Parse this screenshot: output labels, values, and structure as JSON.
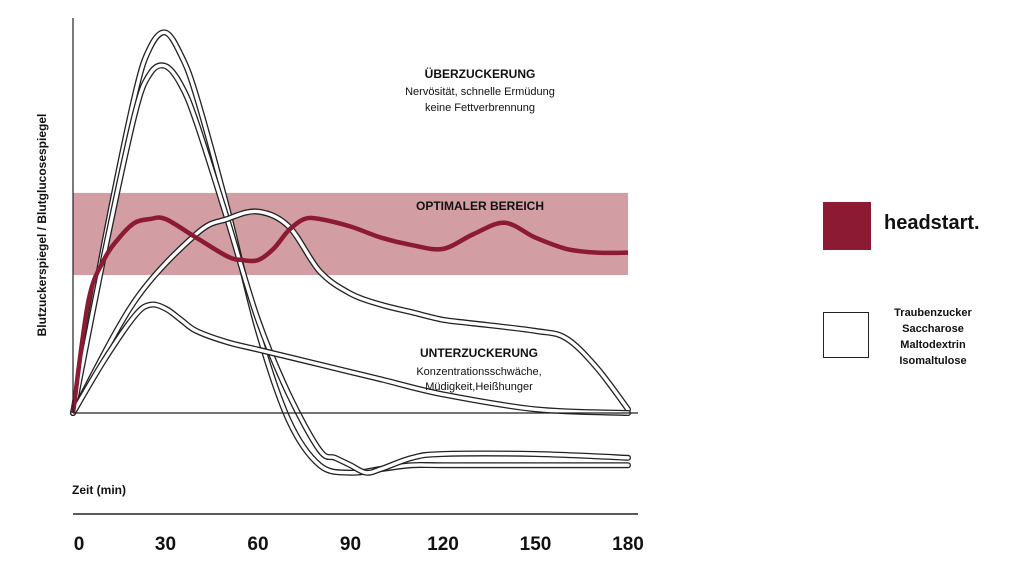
{
  "chart_data": {
    "type": "line",
    "ylabel": "Blutzuckerspiegel / Blutglucosespiegel",
    "xlabel": "Zeit (min)",
    "xticks": [
      0,
      30,
      60,
      90,
      120,
      150,
      180
    ],
    "xlim": [
      0,
      180
    ],
    "ylim": [
      -20,
      100
    ],
    "band": {
      "label": "OPTIMALER BEREICH",
      "from": 37,
      "to": 59,
      "color": "#d29ea4"
    },
    "annotations": {
      "high": {
        "title": "ÜBERZUCKERUNG",
        "lines": [
          "Nervösität, schnelle Ermüdung",
          "keine Fettverbrennung"
        ]
      },
      "low": {
        "title": "UNTERZUCKERUNG",
        "lines": [
          "Konzentrationsschwäche,",
          "Müdigkeit,Heißhunger"
        ]
      }
    },
    "series": [
      {
        "name": "headstart.",
        "color": "#8b1a32",
        "x": [
          0,
          5,
          10,
          15,
          20,
          25,
          30,
          40,
          50,
          55,
          60,
          65,
          70,
          75,
          80,
          90,
          100,
          110,
          120,
          130,
          140,
          150,
          160,
          170,
          180
        ],
        "y": [
          0,
          30,
          41,
          47,
          51,
          52,
          52,
          47,
          42,
          41,
          41,
          44,
          49,
          52,
          52,
          50,
          47,
          45,
          44,
          48,
          51,
          47,
          44,
          43,
          43
        ]
      },
      {
        "name": "Traubenzucker",
        "color": "#222222",
        "x": [
          0,
          10,
          20,
          25,
          30,
          35,
          40,
          50,
          60,
          70,
          80,
          90,
          100,
          110,
          120,
          150,
          180
        ],
        "y": [
          0,
          45,
          85,
          98,
          102,
          96,
          85,
          55,
          22,
          -2,
          -14,
          -16,
          -15,
          -14,
          -14,
          -14,
          -14
        ]
      },
      {
        "name": "Saccharose",
        "color": "#222222",
        "x": [
          0,
          10,
          20,
          25,
          30,
          35,
          40,
          50,
          60,
          70,
          80,
          85,
          90,
          95,
          100,
          110,
          120,
          150,
          180
        ],
        "y": [
          0,
          42,
          80,
          91,
          93,
          88,
          78,
          52,
          25,
          5,
          -10,
          -12,
          -14,
          -16,
          -15,
          -12,
          -11,
          -11,
          -12
        ]
      },
      {
        "name": "Maltodextrin",
        "color": "#222222",
        "x": [
          0,
          20,
          40,
          50,
          60,
          70,
          80,
          90,
          100,
          110,
          120,
          130,
          150,
          160,
          170,
          180
        ],
        "y": [
          0,
          30,
          48,
          52,
          54,
          50,
          38,
          32,
          29,
          27,
          25,
          24,
          22,
          20,
          12,
          1
        ]
      },
      {
        "name": "Isomaltulose",
        "color": "#222222",
        "x": [
          0,
          10,
          20,
          25,
          30,
          35,
          40,
          50,
          60,
          80,
          100,
          120,
          150,
          180
        ],
        "y": [
          0,
          14,
          26,
          29,
          28,
          25,
          22,
          19,
          17,
          13,
          9,
          5,
          1,
          0
        ]
      }
    ]
  },
  "legend": {
    "main": "headstart.",
    "main_color": "#8b1a32",
    "others": [
      "Traubenzucker",
      "Saccharose",
      "Maltodextrin",
      "Isomaltulose"
    ]
  }
}
